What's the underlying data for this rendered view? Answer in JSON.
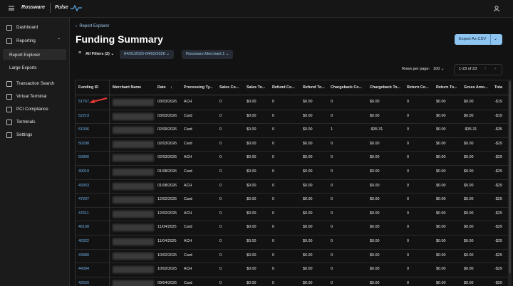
{
  "header": {
    "brand": "Rossware",
    "product": "Pulse"
  },
  "sidebar": {
    "items": [
      {
        "label": "Dashboard"
      },
      {
        "label": "Reporting",
        "expandable": true
      },
      {
        "label": "Report Explorer",
        "sub": true,
        "active": true
      },
      {
        "label": "Large Exports",
        "sub": true
      },
      {
        "label": "Transaction Search"
      },
      {
        "label": "Virtual Terminal"
      },
      {
        "label": "PCI Compliance"
      },
      {
        "label": "Terminals"
      },
      {
        "label": "Settings"
      }
    ]
  },
  "breadcrumb": "Report Explorer",
  "title": "Funding Summary",
  "export_button": "Export As CSV",
  "filters": [
    "All Filters (2)",
    "04/01/2025-04/02/2026",
    "Rossware.Merchant.1"
  ],
  "pagination": {
    "rows_per_page_label": "Rows per page:",
    "rows_per_page": "100",
    "range": "1-23 of 23"
  },
  "table": {
    "columns": [
      "Funding ID",
      "Merchant Name",
      "Date",
      "Processing Ty...",
      "Sales Co...",
      "Sales To...",
      "Refund Co...",
      "Refund To...",
      "Chargeback Co...",
      "Chargeback To...",
      "Return Co...",
      "Return To...",
      "Gross Amo...",
      "Tota"
    ],
    "rows": [
      [
        "51767",
        "03/03/2026",
        "ACH",
        "0",
        "$0.00",
        "0",
        "$0.00",
        "0",
        "$0.00",
        "0",
        "$0.00",
        "$0.00",
        "-$19"
      ],
      [
        "52219",
        "03/03/2026",
        "Card",
        "0",
        "$0.00",
        "0",
        "$0.00",
        "0",
        "$0.00",
        "0",
        "$0.00",
        "$0.00",
        "-$19"
      ],
      [
        "51036",
        "02/09/2026",
        "Card",
        "0",
        "$0.00",
        "0",
        "$0.00",
        "1",
        "-$35.31",
        "0",
        "$0.00",
        "-$35.31",
        "-$35"
      ],
      [
        "50208",
        "02/03/2026",
        "Card",
        "0",
        "$0.00",
        "0",
        "$0.00",
        "0",
        "$0.00",
        "0",
        "$0.00",
        "$0.00",
        "-$29"
      ],
      [
        "50806",
        "02/03/2026",
        "ACH",
        "0",
        "$0.00",
        "0",
        "$0.00",
        "0",
        "$0.00",
        "0",
        "$0.00",
        "$0.00",
        "-$29"
      ],
      [
        "49019",
        "01/08/2026",
        "Card",
        "0",
        "$0.00",
        "0",
        "$0.00",
        "0",
        "$0.00",
        "0",
        "$0.00",
        "$0.00",
        "-$29"
      ],
      [
        "49353",
        "01/08/2026",
        "ACH",
        "0",
        "$0.00",
        "0",
        "$0.00",
        "0",
        "$0.00",
        "0",
        "$0.00",
        "$0.00",
        "-$29"
      ],
      [
        "47297",
        "12/02/2025",
        "Card",
        "0",
        "$0.00",
        "0",
        "$0.00",
        "0",
        "$0.00",
        "0",
        "$0.00",
        "$0.00",
        "-$29"
      ],
      [
        "47611",
        "12/02/2025",
        "ACH",
        "0",
        "$0.00",
        "0",
        "$0.00",
        "0",
        "$0.00",
        "0",
        "$0.00",
        "$0.00",
        "-$29"
      ],
      [
        "46108",
        "11/04/2025",
        "Card",
        "0",
        "$0.00",
        "0",
        "$0.00",
        "0",
        "$0.00",
        "0",
        "$0.00",
        "$0.00",
        "-$29"
      ],
      [
        "46322",
        "11/04/2025",
        "ACH",
        "0",
        "$0.00",
        "0",
        "$0.00",
        "0",
        "$0.00",
        "0",
        "$0.00",
        "$0.00",
        "-$29"
      ],
      [
        "43980",
        "10/02/2025",
        "Card",
        "0",
        "$0.00",
        "0",
        "$0.00",
        "0",
        "$0.00",
        "0",
        "$0.00",
        "$0.00",
        "-$29"
      ],
      [
        "44304",
        "10/02/2025",
        "ACH",
        "0",
        "$0.00",
        "0",
        "$0.00",
        "0",
        "$0.00",
        "0",
        "$0.00",
        "$0.00",
        "-$29"
      ],
      [
        "42520",
        "09/04/2025",
        "Card",
        "0",
        "$0.00",
        "0",
        "$0.00",
        "0",
        "$0.00",
        "0",
        "$0.00",
        "$0.00",
        "-$29"
      ]
    ]
  }
}
